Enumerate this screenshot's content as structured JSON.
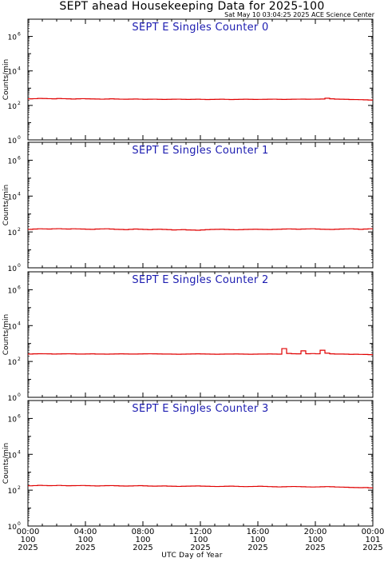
{
  "header": {
    "title": "SEPT ahead Housekeeping Data for 2025-100",
    "timestamp": "Sat May 10 03:04:25 2025 ACE Science Center",
    "xaxis_label": "UTC Day of Year"
  },
  "colors": {
    "data_line": "#e00000",
    "panel_title": "#1c1cb0",
    "axes": "#000000"
  },
  "chart_data": [
    {
      "type": "line",
      "title": "SEPT E Singles Counter 0",
      "ylabel": "Counts/min",
      "yscale": "log",
      "ylim": [
        1,
        10000000
      ],
      "yticks": [
        "10^0",
        "10^2",
        "10^4",
        "10^6"
      ],
      "xlim": [
        "2025-100 00:00",
        "2025-101 00:00"
      ],
      "series": [
        {
          "x_start": "2025-100 00:00",
          "x_end": "2025-101 00:00",
          "values": [
            240,
            245,
            255,
            250,
            245,
            240,
            250,
            245,
            240,
            235,
            240,
            245,
            240,
            238,
            235,
            230,
            235,
            240,
            235,
            230,
            228,
            232,
            235,
            230,
            225,
            228,
            230,
            226,
            222,
            225,
            228,
            230,
            226,
            222,
            225,
            228,
            224,
            220,
            222,
            225,
            228,
            224,
            220,
            222,
            225,
            228,
            226,
            222,
            224,
            226,
            228,
            230,
            226,
            222,
            225,
            228,
            230,
            232,
            228,
            230,
            232,
            235,
            260,
            240,
            232,
            228,
            225,
            220,
            218,
            215,
            210,
            205
          ]
        }
      ]
    },
    {
      "type": "line",
      "title": "SEPT E Singles Counter 1",
      "ylabel": "Counts/min",
      "yscale": "log",
      "ylim": [
        1,
        10000000
      ],
      "yticks": [
        "10^0",
        "10^2",
        "10^4",
        "10^6"
      ],
      "xlim": [
        "2025-100 00:00",
        "2025-101 00:00"
      ],
      "series": [
        {
          "x_start": "2025-100 00:00",
          "x_end": "2025-101 00:00",
          "values": [
            140,
            145,
            150,
            148,
            145,
            150,
            152,
            148,
            145,
            150,
            148,
            145,
            142,
            140,
            145,
            148,
            150,
            145,
            140,
            138,
            135,
            140,
            145,
            142,
            138,
            135,
            140,
            142,
            138,
            135,
            130,
            132,
            135,
            130,
            128,
            125,
            130,
            135,
            138,
            140,
            142,
            138,
            135,
            132,
            135,
            138,
            140,
            142,
            140,
            138,
            136,
            140,
            142,
            145,
            148,
            145,
            142,
            145,
            148,
            150,
            145,
            142,
            140,
            138,
            142,
            145,
            148,
            150,
            145,
            140,
            145,
            150
          ]
        }
      ]
    },
    {
      "type": "line",
      "title": "SEPT E Singles Counter 2",
      "ylabel": "Counts/min",
      "yscale": "log",
      "ylim": [
        1,
        10000000
      ],
      "yticks": [
        "10^0",
        "10^2",
        "10^4",
        "10^6"
      ],
      "xlim": [
        "2025-100 00:00",
        "2025-101 00:00"
      ],
      "series": [
        {
          "x_start": "2025-100 00:00",
          "x_end": "2025-101 00:00",
          "values": [
            260,
            265,
            270,
            268,
            265,
            260,
            262,
            265,
            268,
            265,
            260,
            258,
            262,
            265,
            260,
            258,
            255,
            260,
            262,
            265,
            262,
            258,
            260,
            262,
            265,
            268,
            265,
            262,
            260,
            258,
            255,
            252,
            255,
            258,
            262,
            265,
            262,
            258,
            255,
            252,
            255,
            258,
            260,
            262,
            258,
            255,
            252,
            255,
            258,
            260,
            262,
            258,
            255,
            520,
            280,
            270,
            265,
            390,
            270,
            275,
            268,
            420,
            290,
            265,
            260,
            258,
            255,
            250,
            252,
            248,
            245,
            240
          ]
        }
      ]
    },
    {
      "type": "line",
      "title": "SEPT E Singles Counter 3",
      "ylabel": "Counts/min",
      "yscale": "log",
      "ylim": [
        1,
        10000000
      ],
      "yticks": [
        "10^0",
        "10^2",
        "10^4",
        "10^6"
      ],
      "xlim": [
        "2025-100 00:00",
        "2025-101 00:00"
      ],
      "series": [
        {
          "x_start": "2025-100 00:00",
          "x_end": "2025-101 00:00",
          "values": [
            175,
            180,
            185,
            182,
            178,
            180,
            184,
            180,
            176,
            178,
            180,
            182,
            178,
            175,
            172,
            175,
            178,
            180,
            176,
            172,
            170,
            172,
            175,
            178,
            174,
            170,
            168,
            170,
            172,
            168,
            165,
            162,
            165,
            168,
            170,
            172,
            168,
            165,
            162,
            160,
            162,
            165,
            168,
            164,
            160,
            158,
            160,
            162,
            165,
            162,
            158,
            155,
            152,
            155,
            158,
            160,
            158,
            155,
            152,
            150,
            152,
            155,
            158,
            155,
            150,
            148,
            145,
            142,
            140,
            138,
            140,
            135
          ]
        }
      ]
    }
  ],
  "xticks": [
    {
      "time": "00:00",
      "day": "100",
      "year": "2025"
    },
    {
      "time": "04:00",
      "day": "100",
      "year": "2025"
    },
    {
      "time": "08:00",
      "day": "100",
      "year": "2025"
    },
    {
      "time": "12:00",
      "day": "100",
      "year": "2025"
    },
    {
      "time": "16:00",
      "day": "100",
      "year": "2025"
    },
    {
      "time": "20:00",
      "day": "100",
      "year": "2025"
    },
    {
      "time": "00:00",
      "day": "101",
      "year": "2025"
    }
  ]
}
